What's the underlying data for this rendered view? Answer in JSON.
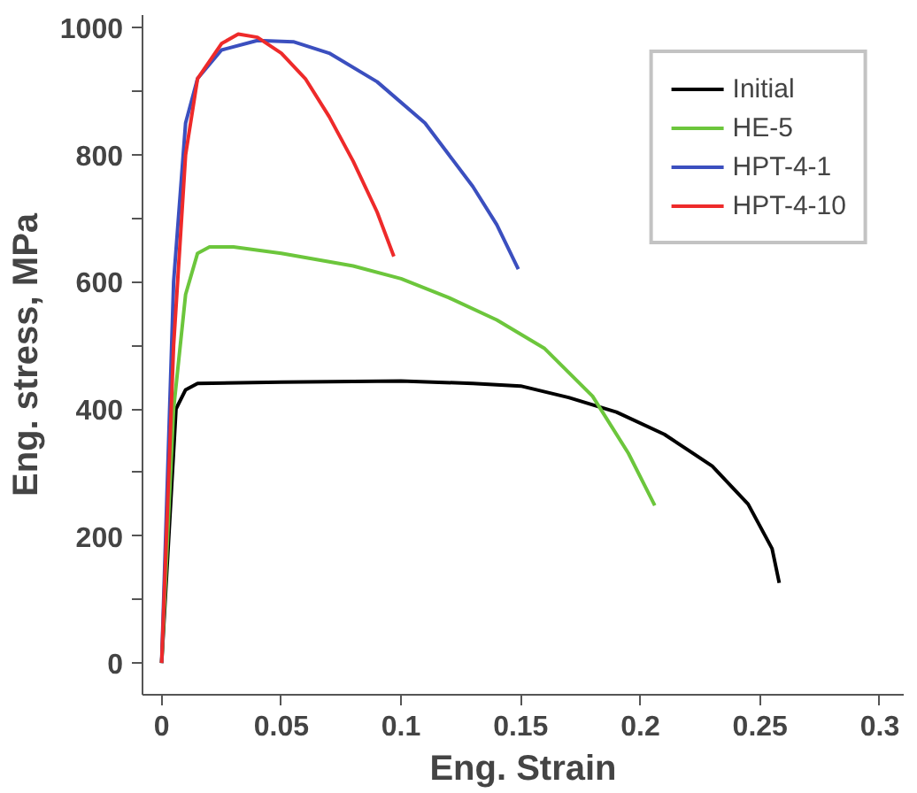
{
  "chart_data": {
    "type": "line",
    "xlabel": "Eng. Strain",
    "ylabel": "Eng. stress, MPa",
    "xlim": [
      -0.008,
      0.31
    ],
    "ylim": [
      -50,
      1020
    ],
    "xticks": [
      0,
      0.05,
      0.1,
      0.15,
      0.2,
      0.25,
      0.3
    ],
    "yticks": [
      0,
      {
        "value": 100,
        "label": null
      },
      200,
      {
        "value": 300,
        "label": null
      },
      400,
      {
        "value": 500,
        "label": null
      },
      600,
      {
        "value": 700,
        "label": null
      },
      800,
      {
        "value": 900,
        "label": null
      },
      1000
    ],
    "grid": false,
    "legend": "top right",
    "marker": "none",
    "line_style": "solid",
    "series": [
      {
        "name": "Initial",
        "color": "#000000",
        "x": [
          0,
          0.006,
          0.01,
          0.015,
          0.05,
          0.1,
          0.13,
          0.15,
          0.17,
          0.19,
          0.21,
          0.23,
          0.245,
          0.255,
          0.258
        ],
        "values": [
          0,
          400,
          430,
          440,
          442,
          444,
          440,
          436,
          418,
          395,
          360,
          310,
          250,
          180,
          126
        ]
      },
      {
        "name": "HE-5",
        "color": "#6cc63c",
        "x": [
          0,
          0.005,
          0.01,
          0.015,
          0.02,
          0.03,
          0.05,
          0.08,
          0.1,
          0.12,
          0.14,
          0.16,
          0.18,
          0.195,
          0.206
        ],
        "values": [
          0,
          400,
          580,
          645,
          655,
          655,
          645,
          625,
          605,
          575,
          540,
          495,
          420,
          330,
          248
        ]
      },
      {
        "name": "HPT-4-1",
        "color": "#3b4fbf",
        "x": [
          0,
          0.005,
          0.01,
          0.015,
          0.025,
          0.04,
          0.055,
          0.07,
          0.09,
          0.11,
          0.13,
          0.14,
          0.149
        ],
        "values": [
          0,
          600,
          850,
          920,
          965,
          980,
          978,
          960,
          915,
          850,
          750,
          690,
          620
        ]
      },
      {
        "name": "HPT-4-10",
        "color": "#ee2a2a",
        "x": [
          0,
          0.005,
          0.01,
          0.015,
          0.025,
          0.032,
          0.04,
          0.05,
          0.06,
          0.07,
          0.08,
          0.09,
          0.097
        ],
        "values": [
          0,
          500,
          800,
          920,
          975,
          990,
          985,
          960,
          920,
          860,
          790,
          710,
          640
        ]
      }
    ]
  }
}
